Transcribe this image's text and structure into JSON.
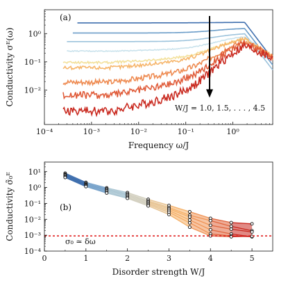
{
  "chart_data": [
    {
      "type": "line",
      "panel_label": "(a)",
      "xlabel": "Frequency ω/J",
      "ylabel": "Conductivity σᴱ(ω)",
      "xscale": "log",
      "yscale": "log",
      "xlim": [
        0.0001,
        7
      ],
      "ylim": [
        0.0006,
        7
      ],
      "xticks": [
        {
          "value": 0.0001,
          "label": "10⁻⁴"
        },
        {
          "value": 0.001,
          "label": "10⁻³"
        },
        {
          "value": 0.01,
          "label": "10⁻²"
        },
        {
          "value": 0.1,
          "label": "10⁻¹"
        },
        {
          "value": 1,
          "label": "10⁰"
        }
      ],
      "yticks": [
        {
          "value": 0.01,
          "label": "10⁻²"
        },
        {
          "value": 0.1,
          "label": "10⁻¹"
        },
        {
          "value": 1,
          "label": "10⁰"
        }
      ],
      "annotation": "W/J = 1.0, 1.5, . . . , 4.5",
      "arrow": {
        "x": 0.32,
        "y_from": 4.2,
        "y_to": 0.006
      },
      "series": [
        {
          "color": "#3f6fae",
          "plateau": 2.4,
          "x_start": 0.0005,
          "noise": 0.0,
          "peak": 2.6
        },
        {
          "color": "#6a9cc8",
          "plateau": 1.05,
          "x_start": 0.0004,
          "noise": 0.0,
          "peak": 2.2
        },
        {
          "color": "#9cc3dc",
          "plateau": 0.52,
          "x_start": 0.0003,
          "noise": 0.0,
          "peak": 1.9
        },
        {
          "color": "#c9e2ec",
          "plateau": 0.24,
          "x_start": 0.0003,
          "noise": 0.02,
          "peak": 1.6
        },
        {
          "color": "#f3e09a",
          "plateau": 0.095,
          "x_start": 0.00025,
          "noise": 0.05,
          "peak": 1.4
        },
        {
          "color": "#f6b56a",
          "plateau": 0.062,
          "x_start": 0.00025,
          "noise": 0.08,
          "peak": 1.2
        },
        {
          "color": "#ee8a50",
          "plateau": 0.019,
          "x_start": 0.00025,
          "noise": 0.12,
          "peak": 1.0
        },
        {
          "color": "#e05c3a",
          "plateau": 0.0066,
          "x_start": 0.00025,
          "noise": 0.16,
          "peak": 0.9
        },
        {
          "color": "#c92a20",
          "plateau": 0.0018,
          "x_start": 0.00025,
          "noise": 0.2,
          "peak": 0.8
        }
      ]
    },
    {
      "type": "line",
      "panel_label": "(b)",
      "xlabel": "Disorder strength W/J",
      "ylabel": "Conductivity σ̃₀ᴱ",
      "yscale": "log",
      "xlim": [
        0,
        5.5
      ],
      "ylim": [
        0.0001,
        40
      ],
      "xticks": [
        0,
        1,
        2,
        3,
        4,
        5
      ],
      "yticks": [
        {
          "value": 0.0001,
          "label": "10⁻⁴"
        },
        {
          "value": 0.001,
          "label": "10⁻³"
        },
        {
          "value": 0.01,
          "label": "10⁻²"
        },
        {
          "value": 0.1,
          "label": "10⁻¹"
        },
        {
          "value": 1,
          "label": "10⁰"
        },
        {
          "value": 10,
          "label": "10¹"
        }
      ],
      "reference_line": {
        "y": 0.0009,
        "label": "σ₀ ≃ δω",
        "color": "#e02020"
      },
      "x": [
        0.5,
        1.0,
        1.5,
        2.0,
        2.5,
        3.0,
        3.5,
        4.0,
        4.5,
        5.0
      ],
      "series": [
        {
          "values": [
            8.0,
            2.1,
            0.95,
            0.48,
            0.18,
            0.075,
            0.03,
            0.0115,
            0.0062,
            0.0052
          ]
        },
        {
          "values": [
            7.0,
            1.8,
            0.82,
            0.4,
            0.14,
            0.055,
            0.018,
            0.0082,
            0.0036,
            0.0019
          ]
        },
        {
          "values": [
            6.2,
            1.6,
            0.72,
            0.34,
            0.12,
            0.045,
            0.014,
            0.0042,
            0.0024,
            0.0016
          ]
        },
        {
          "values": [
            5.5,
            1.45,
            0.62,
            0.29,
            0.1,
            0.036,
            0.009,
            0.0022,
            0.0012,
            0.0008
          ]
        },
        {
          "values": [
            4.8,
            1.3,
            0.52,
            0.24,
            0.085,
            0.028,
            0.006,
            0.0012,
            0.0009,
            0.0008
          ]
        },
        {
          "values": [
            4.3,
            1.15,
            0.45,
            0.21,
            0.07,
            0.02,
            0.0032,
            0.0009,
            0.0008,
            0.00085
          ]
        }
      ],
      "gradient_colors": [
        "#3f6fae",
        "#9cc3dc",
        "#d8d0b8",
        "#f6b56a",
        "#ee8a50",
        "#c92a20"
      ]
    }
  ]
}
